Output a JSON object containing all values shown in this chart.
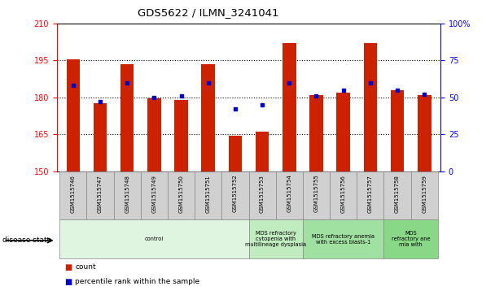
{
  "title": "GDS5622 / ILMN_3241041",
  "samples": [
    "GSM1515746",
    "GSM1515747",
    "GSM1515748",
    "GSM1515749",
    "GSM1515750",
    "GSM1515751",
    "GSM1515752",
    "GSM1515753",
    "GSM1515754",
    "GSM1515755",
    "GSM1515756",
    "GSM1515757",
    "GSM1515758",
    "GSM1515759"
  ],
  "counts": [
    195.5,
    177.5,
    193.5,
    179.5,
    179.0,
    193.5,
    164.5,
    166.0,
    202.0,
    181.0,
    182.0,
    202.0,
    183.0,
    181.0
  ],
  "percentile_ranks": [
    58,
    47,
    60,
    50,
    51,
    60,
    42,
    45,
    60,
    51,
    55,
    60,
    55,
    52
  ],
  "ylim_left": [
    150,
    210
  ],
  "ylim_right": [
    0,
    100
  ],
  "yticks_left": [
    150,
    165,
    180,
    195,
    210
  ],
  "yticks_right": [
    0,
    25,
    50,
    75,
    100
  ],
  "bar_color": "#cc2200",
  "dot_color": "#0000cc",
  "label_bg_color": "#d0d0d0",
  "label_border_color": "#888888",
  "disease_groups": [
    {
      "label": "control",
      "start": 0,
      "end": 7,
      "color": "#e0f5e0"
    },
    {
      "label": "MDS refractory\ncytopenia with\nmultilineage dysplasia",
      "start": 7,
      "end": 9,
      "color": "#c0ecc0"
    },
    {
      "label": "MDS refractory anemia\nwith excess blasts-1",
      "start": 9,
      "end": 12,
      "color": "#a0e0a0"
    },
    {
      "label": "MDS\nrefractory ane\nmia with",
      "start": 12,
      "end": 14,
      "color": "#88d888"
    }
  ],
  "disease_state_label": "disease state",
  "grid_yticks": [
    165,
    180,
    195
  ],
  "bar_width": 0.5
}
